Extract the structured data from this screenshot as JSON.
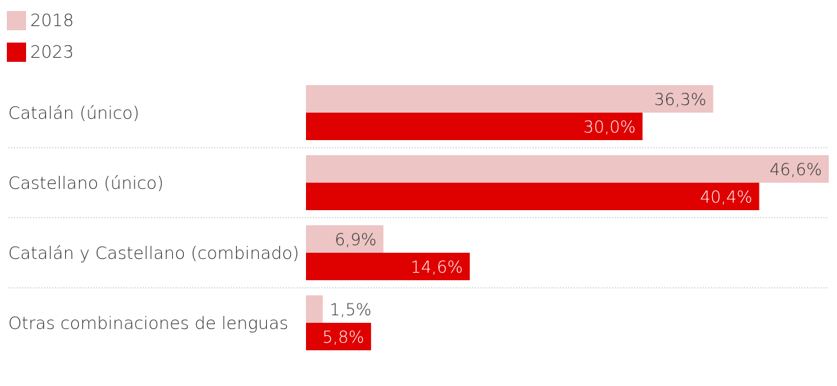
{
  "chart_data": {
    "type": "bar",
    "orientation": "horizontal",
    "categories": [
      "Catalán (único)",
      "Castellano (único)",
      "Catalán y Castellano (combinado)",
      "Otras combinaciones de lenguas"
    ],
    "series": [
      {
        "name": "2018",
        "values": [
          36.3,
          46.6,
          6.9,
          1.5
        ],
        "labels": [
          "36,3%",
          "46,6%",
          "6,9%",
          "1,5%"
        ],
        "color": "#ecc5c4"
      },
      {
        "name": "2023",
        "values": [
          30.0,
          40.4,
          14.6,
          5.8
        ],
        "labels": [
          "30,0%",
          "40,4%",
          "14,6%",
          "5,8%"
        ],
        "color": "#df0000"
      }
    ],
    "xlim": [
      0,
      46.6
    ],
    "legend_position": "top-left",
    "grid": false,
    "separators": "dotted"
  }
}
